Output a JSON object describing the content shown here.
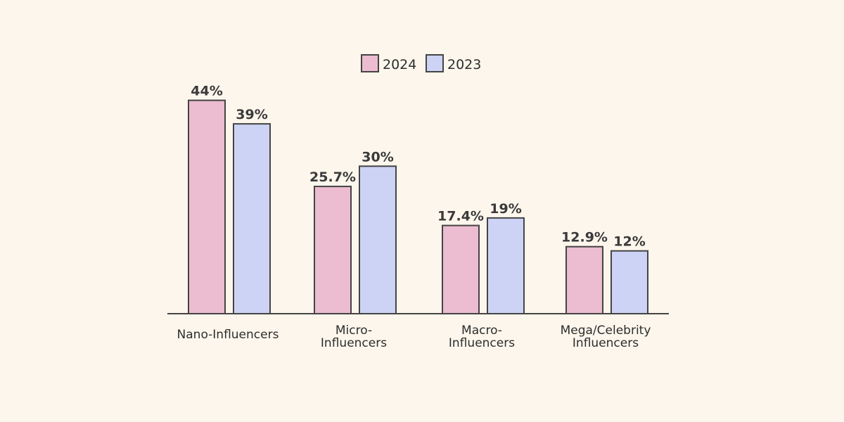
{
  "chart_data": {
    "type": "bar",
    "categories": [
      [
        "Nano-Influencers"
      ],
      [
        "Micro-",
        "Influencers"
      ],
      [
        "Macro-",
        "Influencers"
      ],
      [
        "Mega/Celebrity",
        "Influencers"
      ]
    ],
    "series": [
      {
        "name": "2024",
        "values": [
          44,
          25.7,
          17.4,
          12.9
        ],
        "labels": [
          "44%",
          "25.7%",
          "17.4%",
          "12.9%"
        ],
        "color": "#ecbcd0"
      },
      {
        "name": "2023",
        "values": [
          39,
          30,
          19,
          12
        ],
        "labels": [
          "39%",
          "30%",
          "19%",
          "12%"
        ],
        "color": "#cdd3f5"
      }
    ],
    "legend": "top",
    "grid": false,
    "stroke_color": "#444444",
    "background": "#fdf6ec"
  }
}
